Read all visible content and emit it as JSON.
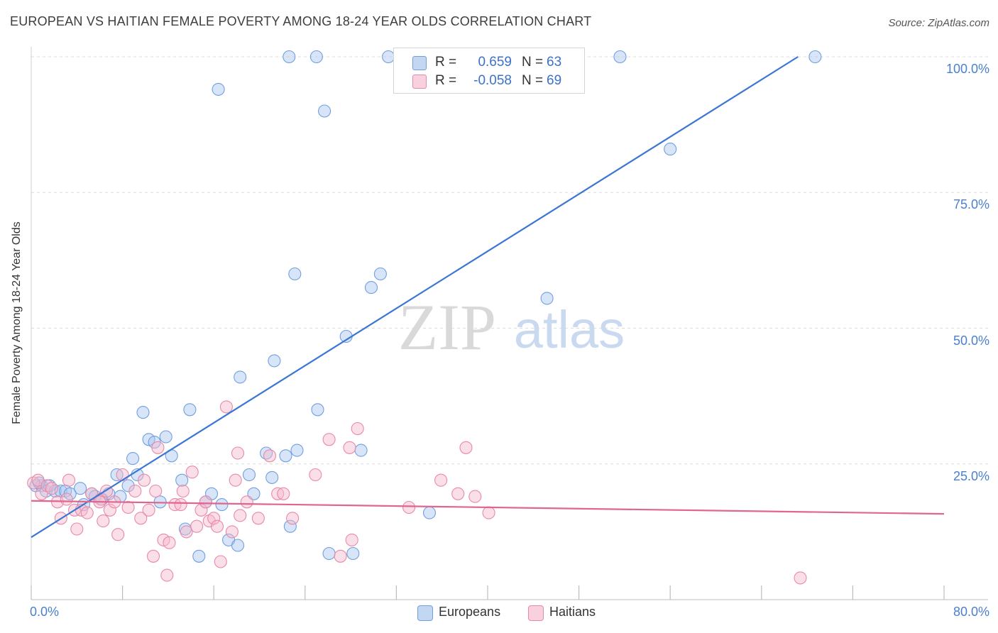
{
  "header": {
    "title": "EUROPEAN VS HAITIAN FEMALE POVERTY AMONG 18-24 YEAR OLDS CORRELATION CHART",
    "source": "Source: ZipAtlas.com"
  },
  "watermark": {
    "zip": "ZIP",
    "atlas": "atlas"
  },
  "legend": {
    "rows": [
      {
        "r_label": "R =",
        "r_value": "0.659",
        "n_label": "N =",
        "n_value": "63",
        "color": "#a9c6ef"
      },
      {
        "r_label": "R =",
        "r_value": "-0.058",
        "n_label": "N =",
        "n_value": "69",
        "color": "#f6b8cb"
      }
    ]
  },
  "bottom_legend": {
    "items": [
      {
        "label": "Europeans",
        "color": "#a9c6ef"
      },
      {
        "label": "Haitians",
        "color": "#f6b8cb"
      }
    ]
  },
  "chart_data": {
    "type": "scatter",
    "title": "EUROPEAN VS HAITIAN FEMALE POVERTY AMONG 18-24 YEAR OLDS CORRELATION CHART",
    "xlabel": "",
    "ylabel": "Female Poverty Among 18-24 Year Olds",
    "xlim": [
      0,
      80
    ],
    "ylim": [
      0,
      100
    ],
    "x_tick_labels": [
      "0.0%",
      "80.0%"
    ],
    "y_tick_labels": [
      "100.0%",
      "75.0%",
      "50.0%",
      "25.0%"
    ],
    "y_ticks": [
      100,
      75,
      50,
      25
    ],
    "grid": true,
    "series": [
      {
        "name": "Europeans",
        "color": "#6f9fe0",
        "fill": "#a9c6ef",
        "trend_color": "#3b76d4",
        "trend": [
          [
            0,
            11.5
          ],
          [
            67.2,
            100
          ]
        ],
        "points": [
          [
            0.4,
            21
          ],
          [
            0.9,
            21
          ],
          [
            1.3,
            20
          ],
          [
            1.6,
            21
          ],
          [
            2.1,
            20
          ],
          [
            2.6,
            20
          ],
          [
            3,
            20
          ],
          [
            3.4,
            19.5
          ],
          [
            4.3,
            20.5
          ],
          [
            4.6,
            17.5
          ],
          [
            5.3,
            19.5
          ],
          [
            5.6,
            19
          ],
          [
            6.2,
            18.5
          ],
          [
            6.8,
            19.5
          ],
          [
            7.5,
            23
          ],
          [
            7.8,
            19
          ],
          [
            8.5,
            21
          ],
          [
            8.9,
            26
          ],
          [
            9.3,
            23
          ],
          [
            9.8,
            34.5
          ],
          [
            10.3,
            29.5
          ],
          [
            10.8,
            29
          ],
          [
            11.3,
            18
          ],
          [
            11.8,
            30
          ],
          [
            12.3,
            26.5
          ],
          [
            13.2,
            22
          ],
          [
            13.5,
            13
          ],
          [
            13.9,
            35
          ],
          [
            14.7,
            8
          ],
          [
            15.3,
            18
          ],
          [
            15.8,
            19.5
          ],
          [
            16.7,
            17.5
          ],
          [
            17.3,
            11
          ],
          [
            18.1,
            10
          ],
          [
            18.3,
            41
          ],
          [
            19.1,
            23
          ],
          [
            19.5,
            19.5
          ],
          [
            20.6,
            27
          ],
          [
            21.1,
            22.5
          ],
          [
            21.3,
            44
          ],
          [
            22.3,
            26.5
          ],
          [
            22.7,
            13.5
          ],
          [
            23.3,
            27.5
          ],
          [
            23.1,
            60
          ],
          [
            25.1,
            35
          ],
          [
            26.1,
            8.5
          ],
          [
            28.2,
            8.5
          ],
          [
            28.9,
            27.5
          ],
          [
            29.8,
            57.5
          ],
          [
            27.6,
            48.5
          ],
          [
            30.6,
            60
          ],
          [
            34.9,
            16
          ],
          [
            45.2,
            55.5
          ],
          [
            16.4,
            94
          ],
          [
            22.6,
            100
          ],
          [
            25,
            100
          ],
          [
            25.7,
            90
          ],
          [
            31.3,
            100
          ],
          [
            43.8,
            100
          ],
          [
            51.6,
            100
          ],
          [
            56,
            83
          ],
          [
            68.7,
            100
          ],
          [
            0.7,
            21.5
          ]
        ]
      },
      {
        "name": "Haitians",
        "color": "#e78aa7",
        "fill": "#f6b8cb",
        "trend_color": "#e0668f",
        "trend": [
          [
            0,
            18.2
          ],
          [
            80,
            15.8
          ]
        ],
        "points": [
          [
            0.2,
            21.5
          ],
          [
            0.6,
            22
          ],
          [
            0.9,
            19.5
          ],
          [
            1.4,
            21
          ],
          [
            1.8,
            20.5
          ],
          [
            2.3,
            18
          ],
          [
            2.6,
            15
          ],
          [
            3.1,
            18.5
          ],
          [
            3.3,
            22
          ],
          [
            3.8,
            16.5
          ],
          [
            4,
            13
          ],
          [
            4.4,
            16.5
          ],
          [
            4.9,
            16
          ],
          [
            5.3,
            19.5
          ],
          [
            6.1,
            18.5
          ],
          [
            6.3,
            14.5
          ],
          [
            6.6,
            20
          ],
          [
            6.9,
            16.5
          ],
          [
            7.3,
            18
          ],
          [
            7.6,
            12
          ],
          [
            8,
            23
          ],
          [
            8.5,
            17
          ],
          [
            9.1,
            20
          ],
          [
            9.6,
            15
          ],
          [
            9.9,
            22
          ],
          [
            10.3,
            16.5
          ],
          [
            10.7,
            8
          ],
          [
            10.9,
            20
          ],
          [
            11.1,
            28
          ],
          [
            11.6,
            11
          ],
          [
            11.9,
            4.5
          ],
          [
            12.1,
            10.5
          ],
          [
            12.6,
            17.5
          ],
          [
            13.1,
            17.5
          ],
          [
            13.6,
            12.5
          ],
          [
            14.1,
            23.5
          ],
          [
            14.5,
            13.5
          ],
          [
            14.9,
            16.5
          ],
          [
            15.3,
            18
          ],
          [
            15.6,
            14.5
          ],
          [
            16,
            15
          ],
          [
            16.3,
            13.5
          ],
          [
            16.6,
            7
          ],
          [
            17.1,
            35.5
          ],
          [
            17.6,
            12.5
          ],
          [
            17.9,
            22
          ],
          [
            18.3,
            15.5
          ],
          [
            18.9,
            18
          ],
          [
            19.9,
            15
          ],
          [
            20.9,
            26.5
          ],
          [
            21.6,
            19.5
          ],
          [
            22.1,
            19.5
          ],
          [
            22.9,
            15
          ],
          [
            26.1,
            29.5
          ],
          [
            27.1,
            8
          ],
          [
            28.1,
            11
          ],
          [
            28.6,
            31.5
          ],
          [
            33.1,
            17
          ],
          [
            35.9,
            22
          ],
          [
            37.4,
            19.5
          ],
          [
            38.1,
            28
          ],
          [
            38.9,
            19
          ],
          [
            40.1,
            16
          ],
          [
            27.9,
            28
          ],
          [
            24.9,
            23
          ],
          [
            67.4,
            4
          ],
          [
            6,
            18
          ],
          [
            13.3,
            20
          ],
          [
            18.1,
            27
          ]
        ]
      }
    ]
  }
}
